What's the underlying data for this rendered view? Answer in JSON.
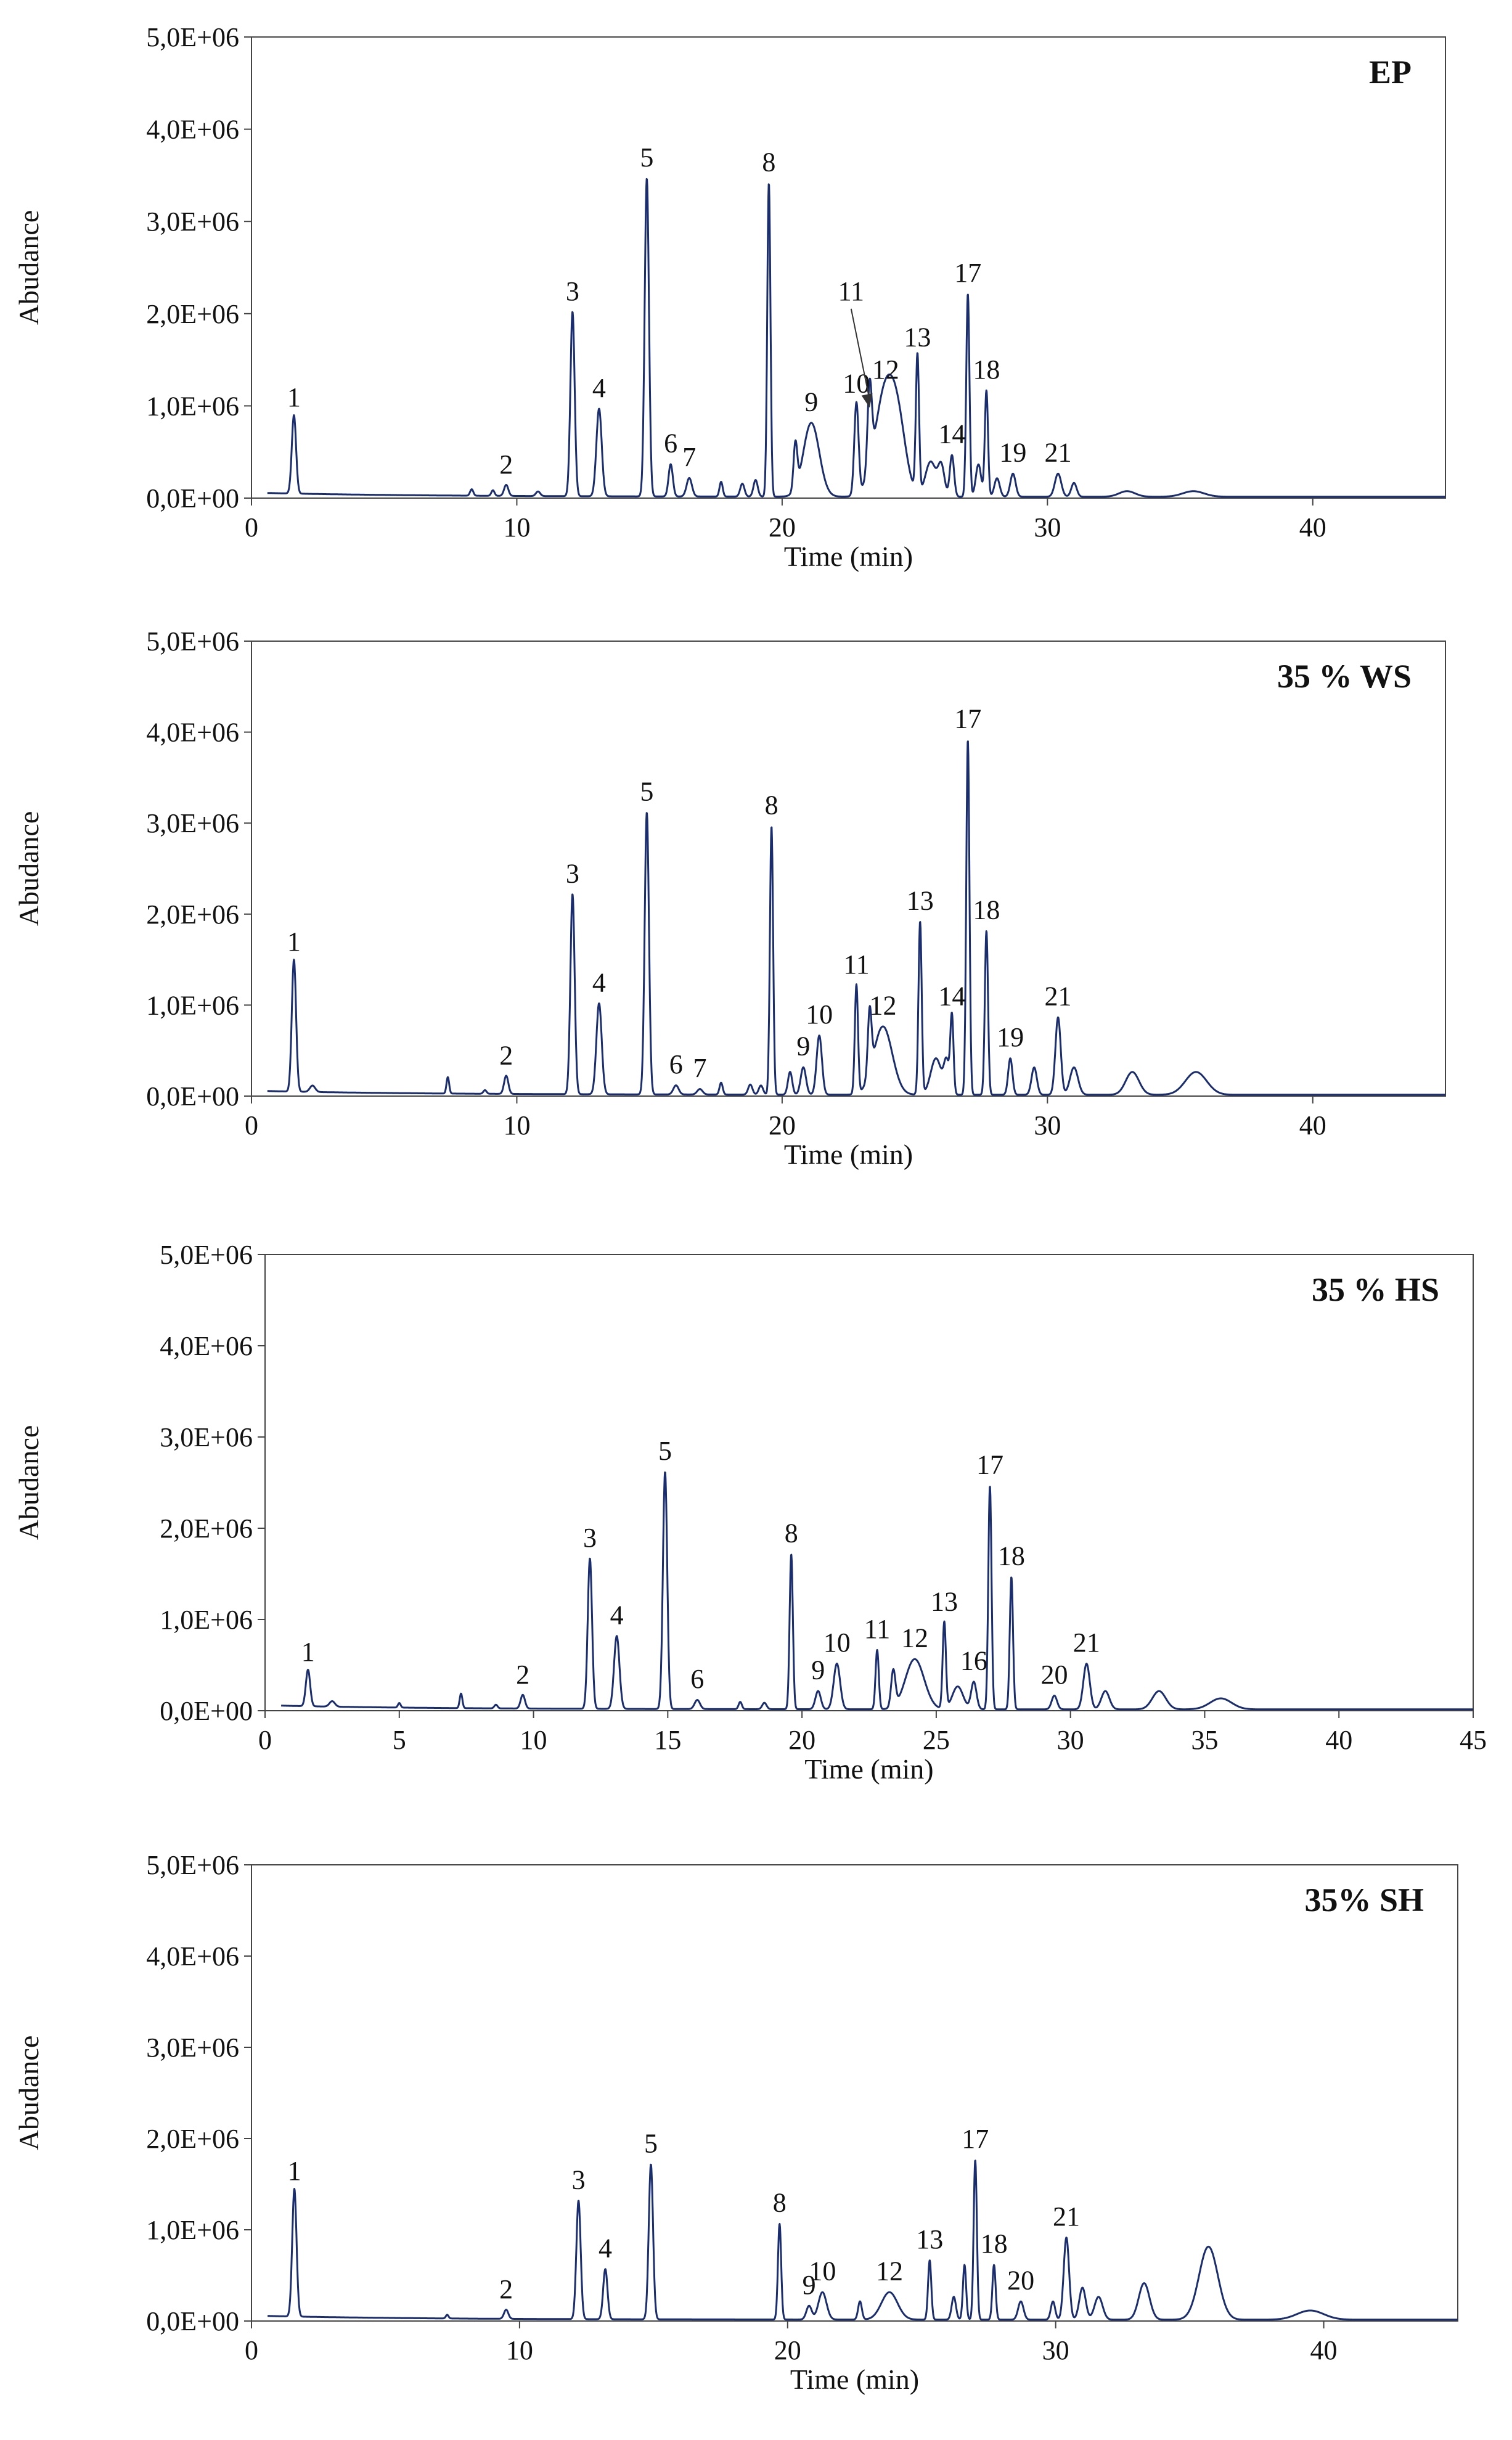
{
  "colors": {
    "trace": "#1a2d6e",
    "axis": "#444444",
    "text": "#111111"
  },
  "chart_data": [
    {
      "type": "line",
      "title": "EP",
      "xlabel": "Time (min)",
      "ylabel": "Abudance",
      "xlim": [
        0,
        45
      ],
      "ylim": [
        0,
        5000000
      ],
      "x_ticks": [
        "0",
        "10",
        "20",
        "30",
        "40"
      ],
      "x_tick_values": [
        0,
        10,
        20,
        30,
        40
      ],
      "y_ticks": [
        "0,0E+00",
        "1,0E+06",
        "2,0E+06",
        "3,0E+06",
        "4,0E+06",
        "5,0E+06"
      ],
      "peaks": [
        {
          "label": "1",
          "t": 1.6,
          "y": 850000,
          "w": 0.08
        },
        {
          "label": "2",
          "t": 9.6,
          "y": 120000,
          "w": 0.08
        },
        {
          "label": "3",
          "t": 12.1,
          "y": 2000000,
          "w": 0.08
        },
        {
          "label": "4",
          "t": 13.1,
          "y": 950000,
          "w": 0.1
        },
        {
          "label": "5",
          "t": 14.9,
          "y": 3450000,
          "w": 0.08
        },
        {
          "label": "6",
          "t": 15.8,
          "y": 350000,
          "w": 0.08
        },
        {
          "label": "7",
          "t": 16.5,
          "y": 200000,
          "w": 0.1
        },
        {
          "label": "8",
          "t": 19.5,
          "y": 3400000,
          "w": 0.06
        },
        {
          "label": "9",
          "t": 21.1,
          "y": 800000,
          "w": 0.3
        },
        {
          "label": "10",
          "t": 22.8,
          "y": 1000000,
          "w": 0.08
        },
        {
          "label": "11",
          "t": 23.3,
          "y": 900000,
          "w": 0.08
        },
        {
          "label": "12",
          "t": 23.9,
          "y": 1150000,
          "w": 0.4
        },
        {
          "label": "13",
          "t": 25.1,
          "y": 1500000,
          "w": 0.06
        },
        {
          "label": "14",
          "t": 26.4,
          "y": 450000,
          "w": 0.08
        },
        {
          "label": "17",
          "t": 27.0,
          "y": 2200000,
          "w": 0.06
        },
        {
          "label": "18",
          "t": 27.7,
          "y": 1150000,
          "w": 0.06
        },
        {
          "label": "19",
          "t": 28.7,
          "y": 250000,
          "w": 0.1
        },
        {
          "label": "21",
          "t": 30.4,
          "y": 250000,
          "w": 0.12
        }
      ],
      "minor_peaks": [
        [
          8.3,
          70000,
          0.06
        ],
        [
          9.1,
          60000,
          0.06
        ],
        [
          10.8,
          50000,
          0.08
        ],
        [
          17.7,
          160000,
          0.06
        ],
        [
          18.5,
          140000,
          0.08
        ],
        [
          19.0,
          180000,
          0.08
        ],
        [
          20.5,
          500000,
          0.07
        ],
        [
          24.4,
          500000,
          0.3
        ],
        [
          25.6,
          380000,
          0.2
        ],
        [
          26.0,
          320000,
          0.12
        ],
        [
          27.4,
          350000,
          0.1
        ],
        [
          28.1,
          200000,
          0.1
        ],
        [
          31.0,
          150000,
          0.1
        ],
        [
          33.0,
          60000,
          0.3
        ],
        [
          35.5,
          60000,
          0.4
        ]
      ],
      "annotations": [
        {
          "text": "11",
          "arrow_from": [
            22.6,
            2000000
          ],
          "arrow_to": [
            23.3,
            900000
          ]
        }
      ]
    },
    {
      "type": "line",
      "title": "35 % WS",
      "xlabel": "Time (min)",
      "ylabel": "Abudance",
      "xlim": [
        0,
        45
      ],
      "ylim": [
        0,
        5000000
      ],
      "x_ticks": [
        "0",
        "10",
        "20",
        "30",
        "40"
      ],
      "x_tick_values": [
        0,
        10,
        20,
        30,
        40
      ],
      "y_ticks": [
        "0,0E+00",
        "1,0E+06",
        "2,0E+06",
        "3,0E+06",
        "4,0E+06",
        "5,0E+06"
      ],
      "peaks": [
        {
          "label": "1",
          "t": 1.6,
          "y": 1450000,
          "w": 0.08
        },
        {
          "label": "2",
          "t": 9.6,
          "y": 200000,
          "w": 0.08
        },
        {
          "label": "3",
          "t": 12.1,
          "y": 2200000,
          "w": 0.08
        },
        {
          "label": "4",
          "t": 13.1,
          "y": 1000000,
          "w": 0.1
        },
        {
          "label": "5",
          "t": 14.9,
          "y": 3100000,
          "w": 0.08
        },
        {
          "label": "6",
          "t": 16.0,
          "y": 100000,
          "w": 0.1
        },
        {
          "label": "7",
          "t": 16.9,
          "y": 60000,
          "w": 0.1
        },
        {
          "label": "8",
          "t": 19.6,
          "y": 2950000,
          "w": 0.06
        },
        {
          "label": "9",
          "t": 20.8,
          "y": 300000,
          "w": 0.1
        },
        {
          "label": "10",
          "t": 21.4,
          "y": 650000,
          "w": 0.1
        },
        {
          "label": "11",
          "t": 22.8,
          "y": 1200000,
          "w": 0.06
        },
        {
          "label": "12",
          "t": 23.8,
          "y": 750000,
          "w": 0.35
        },
        {
          "label": "13",
          "t": 25.2,
          "y": 1900000,
          "w": 0.06
        },
        {
          "label": "14",
          "t": 26.4,
          "y": 850000,
          "w": 0.06
        },
        {
          "label": "17",
          "t": 27.0,
          "y": 3900000,
          "w": 0.06
        },
        {
          "label": "18",
          "t": 27.7,
          "y": 1800000,
          "w": 0.06
        },
        {
          "label": "19",
          "t": 28.6,
          "y": 400000,
          "w": 0.08
        },
        {
          "label": "21",
          "t": 30.4,
          "y": 850000,
          "w": 0.1
        }
      ],
      "minor_peaks": [
        [
          2.3,
          70000,
          0.1
        ],
        [
          7.4,
          180000,
          0.05
        ],
        [
          8.8,
          40000,
          0.06
        ],
        [
          17.7,
          130000,
          0.06
        ],
        [
          18.8,
          110000,
          0.08
        ],
        [
          19.2,
          100000,
          0.08
        ],
        [
          20.3,
          250000,
          0.08
        ],
        [
          23.3,
          700000,
          0.07
        ],
        [
          25.8,
          400000,
          0.2
        ],
        [
          26.2,
          350000,
          0.1
        ],
        [
          29.5,
          300000,
          0.1
        ],
        [
          31.0,
          300000,
          0.15
        ],
        [
          33.2,
          250000,
          0.25
        ],
        [
          35.6,
          250000,
          0.4
        ]
      ],
      "annotations": []
    },
    {
      "type": "line",
      "title": "35 % HS",
      "xlabel": "Time (min)",
      "ylabel": "Abudance",
      "xlim": [
        0,
        45
      ],
      "ylim": [
        0,
        5000000
      ],
      "x_ticks": [
        "0",
        "5",
        "10",
        "15",
        "20",
        "25",
        "30",
        "35",
        "40",
        "45"
      ],
      "x_tick_values": [
        0,
        5,
        10,
        15,
        20,
        25,
        30,
        35,
        40,
        45
      ],
      "y_ticks": [
        "0,0E+00",
        "1,0E+06",
        "2,0E+06",
        "3,0E+06",
        "4,0E+06",
        "5,0E+06"
      ],
      "peaks": [
        {
          "label": "1",
          "t": 1.6,
          "y": 400000,
          "w": 0.08
        },
        {
          "label": "2",
          "t": 9.6,
          "y": 150000,
          "w": 0.08
        },
        {
          "label": "3",
          "t": 12.1,
          "y": 1650000,
          "w": 0.08
        },
        {
          "label": "4",
          "t": 13.1,
          "y": 800000,
          "w": 0.1
        },
        {
          "label": "5",
          "t": 14.9,
          "y": 2600000,
          "w": 0.08
        },
        {
          "label": "6",
          "t": 16.1,
          "y": 100000,
          "w": 0.1
        },
        {
          "label": "8",
          "t": 19.6,
          "y": 1700000,
          "w": 0.06
        },
        {
          "label": "9",
          "t": 20.6,
          "y": 200000,
          "w": 0.1
        },
        {
          "label": "10",
          "t": 21.3,
          "y": 500000,
          "w": 0.12
        },
        {
          "label": "11",
          "t": 22.8,
          "y": 650000,
          "w": 0.06
        },
        {
          "label": "12",
          "t": 24.2,
          "y": 550000,
          "w": 0.35
        },
        {
          "label": "13",
          "t": 25.3,
          "y": 950000,
          "w": 0.06
        },
        {
          "label": "16",
          "t": 26.4,
          "y": 300000,
          "w": 0.1
        },
        {
          "label": "17",
          "t": 27.0,
          "y": 2450000,
          "w": 0.06
        },
        {
          "label": "18",
          "t": 27.8,
          "y": 1450000,
          "w": 0.06
        },
        {
          "label": "20",
          "t": 29.4,
          "y": 150000,
          "w": 0.1
        },
        {
          "label": "21",
          "t": 30.6,
          "y": 500000,
          "w": 0.12
        }
      ],
      "minor_peaks": [
        [
          2.5,
          60000,
          0.1
        ],
        [
          5.0,
          50000,
          0.05
        ],
        [
          7.3,
          160000,
          0.05
        ],
        [
          8.6,
          40000,
          0.06
        ],
        [
          17.7,
          80000,
          0.06
        ],
        [
          18.6,
          70000,
          0.08
        ],
        [
          23.4,
          400000,
          0.08
        ],
        [
          25.8,
          250000,
          0.2
        ],
        [
          31.3,
          200000,
          0.15
        ],
        [
          33.3,
          200000,
          0.25
        ],
        [
          35.6,
          120000,
          0.4
        ]
      ],
      "annotations": []
    },
    {
      "type": "line",
      "title": "35% SH",
      "xlabel": "Time (min)",
      "ylabel": "Abudance",
      "xlim": [
        0,
        45
      ],
      "ylim": [
        0,
        5000000
      ],
      "x_ticks": [
        "0",
        "10",
        "20",
        "30",
        "40"
      ],
      "x_tick_values": [
        0,
        10,
        20,
        30,
        40
      ],
      "y_ticks": [
        "0,0E+00",
        "1,0E+06",
        "2,0E+06",
        "3,0E+06",
        "4,0E+06",
        "5,0E+06"
      ],
      "peaks": [
        {
          "label": "1",
          "t": 1.6,
          "y": 1400000,
          "w": 0.08
        },
        {
          "label": "2",
          "t": 9.5,
          "y": 100000,
          "w": 0.08
        },
        {
          "label": "3",
          "t": 12.2,
          "y": 1300000,
          "w": 0.08
        },
        {
          "label": "4",
          "t": 13.2,
          "y": 550000,
          "w": 0.08
        },
        {
          "label": "5",
          "t": 14.9,
          "y": 1700000,
          "w": 0.08
        },
        {
          "label": "8",
          "t": 19.7,
          "y": 1050000,
          "w": 0.06
        },
        {
          "label": "9",
          "t": 20.8,
          "y": 150000,
          "w": 0.1
        },
        {
          "label": "10",
          "t": 21.3,
          "y": 300000,
          "w": 0.15
        },
        {
          "label": "12",
          "t": 23.8,
          "y": 300000,
          "w": 0.3
        },
        {
          "label": "13",
          "t": 25.3,
          "y": 650000,
          "w": 0.06
        },
        {
          "label": "17",
          "t": 27.0,
          "y": 1750000,
          "w": 0.06
        },
        {
          "label": "18",
          "t": 27.7,
          "y": 600000,
          "w": 0.06
        },
        {
          "label": "20",
          "t": 28.7,
          "y": 200000,
          "w": 0.1
        },
        {
          "label": "21",
          "t": 30.4,
          "y": 900000,
          "w": 0.1
        }
      ],
      "minor_peaks": [
        [
          7.3,
          40000,
          0.05
        ],
        [
          22.7,
          200000,
          0.07
        ],
        [
          26.2,
          250000,
          0.08
        ],
        [
          26.6,
          600000,
          0.06
        ],
        [
          29.9,
          200000,
          0.08
        ],
        [
          31.0,
          350000,
          0.12
        ],
        [
          31.6,
          250000,
          0.15
        ],
        [
          33.3,
          400000,
          0.2
        ],
        [
          35.7,
          800000,
          0.35
        ],
        [
          39.5,
          100000,
          0.5
        ]
      ],
      "annotations": []
    }
  ]
}
